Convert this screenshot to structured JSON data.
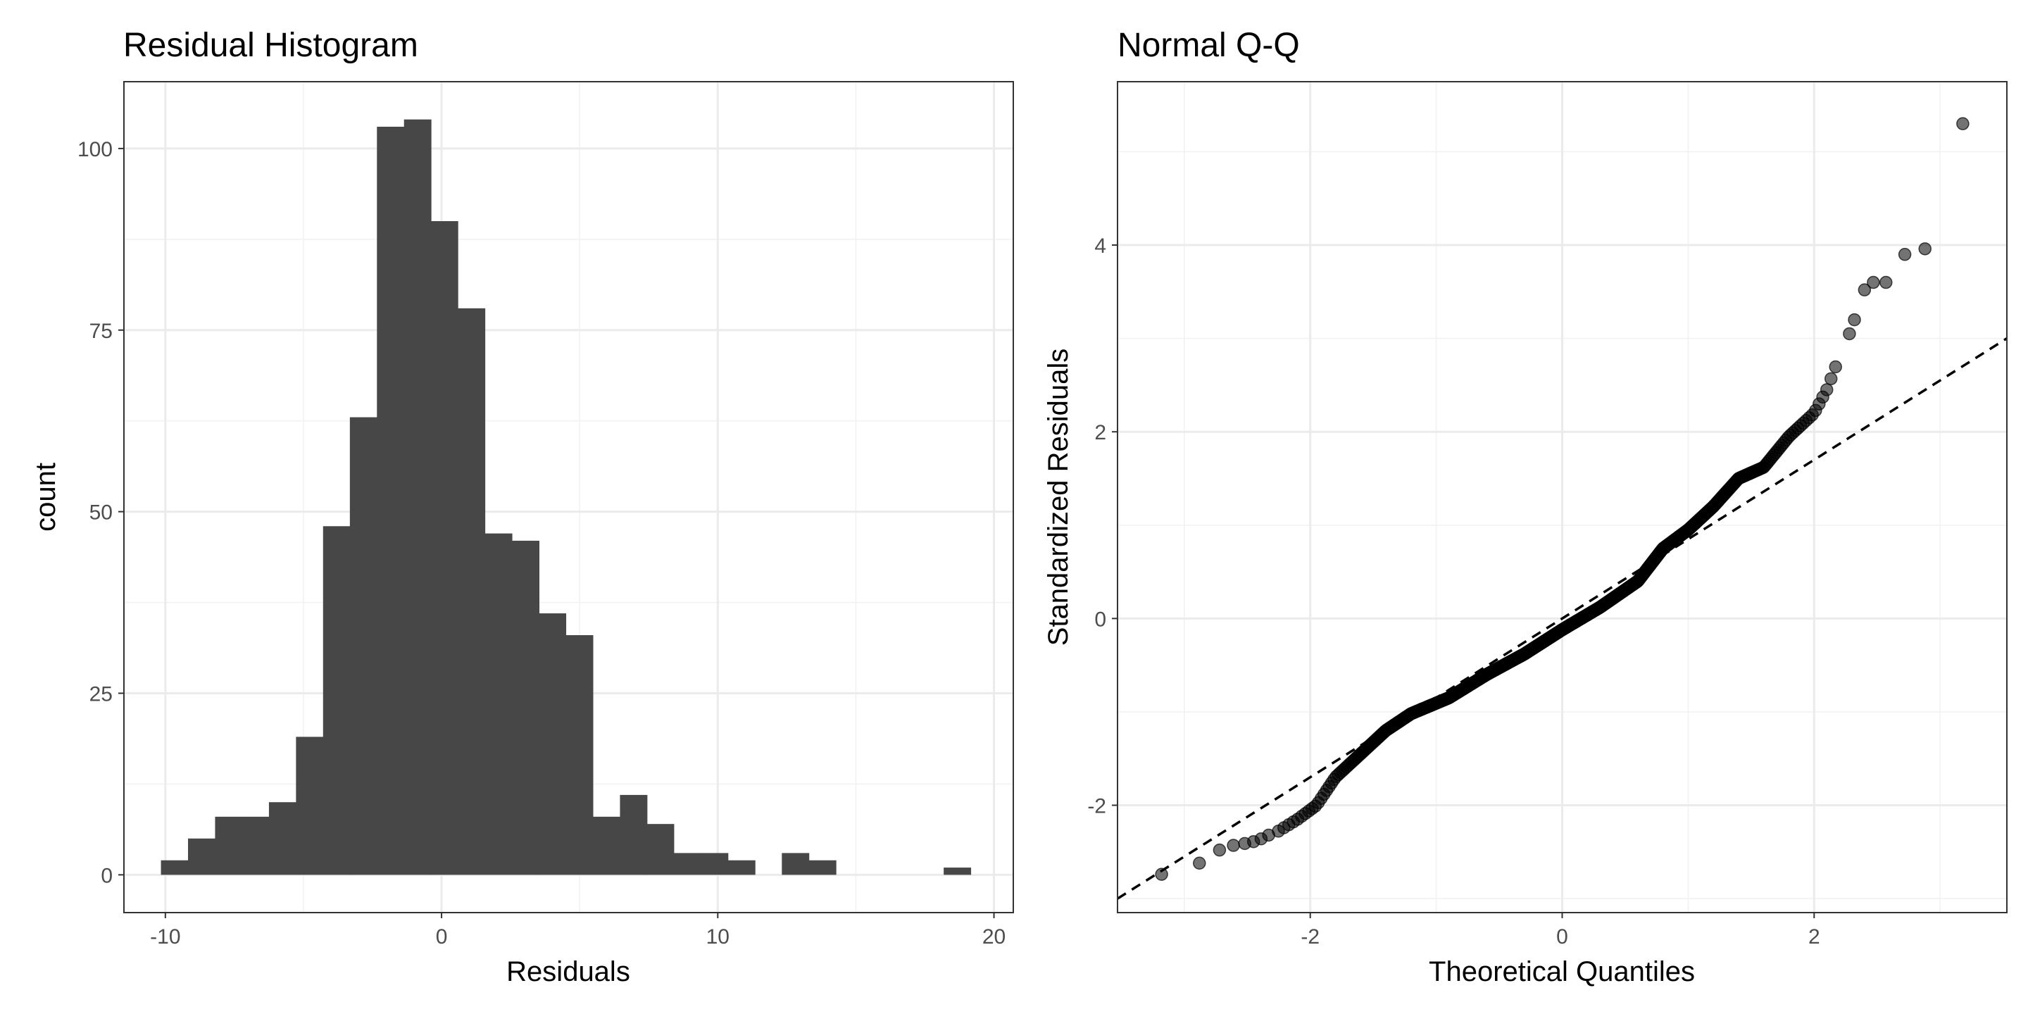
{
  "chart_data": [
    {
      "type": "bar",
      "title": "Residual Histogram",
      "xlabel": "Residuals",
      "ylabel": "count",
      "xlim": [
        -11.5,
        20.7
      ],
      "ylim": [
        -5.2,
        109.2
      ],
      "xticks": [
        -10,
        0,
        10,
        20
      ],
      "yticks": [
        0,
        25,
        50,
        75,
        100
      ],
      "grid": true,
      "colors": {
        "bar": "#474747"
      },
      "bin_width": 0.977,
      "bin_starts": [
        -10.16,
        -9.18,
        -8.2,
        -7.23,
        -6.25,
        -5.27,
        -4.29,
        -3.32,
        -2.34,
        -1.36,
        -0.39,
        0.59,
        1.57,
        2.55,
        3.52,
        4.5,
        5.48,
        6.46,
        7.43,
        8.41,
        9.39,
        10.37,
        11.34,
        12.32,
        13.3,
        14.27,
        15.25,
        16.23,
        17.21,
        18.18
      ],
      "values": [
        2,
        5,
        8,
        8,
        10,
        19,
        48,
        63,
        103,
        104,
        90,
        78,
        47,
        46,
        36,
        33,
        8,
        11,
        7,
        3,
        3,
        2,
        0,
        3,
        2,
        0,
        0,
        0,
        0,
        1
      ]
    },
    {
      "type": "scatter",
      "title": "Normal Q-Q",
      "xlabel": "Theoretical Quantiles",
      "ylabel": "Standardized Residuals",
      "xlim": [
        -3.53,
        3.53
      ],
      "ylim": [
        -3.15,
        5.75
      ],
      "xticks": [
        -2,
        0,
        2
      ],
      "yticks": [
        -2,
        0,
        2,
        4
      ],
      "grid": true,
      "n_points": 700,
      "reference_line": {
        "intercept": 0.0,
        "slope": 0.85
      },
      "outlier_points": [
        {
          "x": -3.18,
          "y": -2.74
        },
        {
          "x": -2.88,
          "y": -2.62
        },
        {
          "x": -2.72,
          "y": -2.48
        },
        {
          "x": -2.61,
          "y": -2.43
        },
        {
          "x": -2.52,
          "y": -2.41
        },
        {
          "x": -2.45,
          "y": -2.39
        },
        {
          "x": -2.39,
          "y": -2.36
        },
        {
          "x": -2.33,
          "y": -2.32
        },
        {
          "x": 2.28,
          "y": 3.05
        },
        {
          "x": 2.32,
          "y": 3.2
        },
        {
          "x": 2.4,
          "y": 3.52
        },
        {
          "x": 2.47,
          "y": 3.6
        },
        {
          "x": 2.57,
          "y": 3.6
        },
        {
          "x": 2.72,
          "y": 3.9
        },
        {
          "x": 2.88,
          "y": 3.96
        },
        {
          "x": 3.18,
          "y": 5.3
        }
      ],
      "curve_knots": [
        {
          "x": -2.28,
          "y": -2.3
        },
        {
          "x": -2.1,
          "y": -2.15
        },
        {
          "x": -1.95,
          "y": -2.0
        },
        {
          "x": -1.8,
          "y": -1.7
        },
        {
          "x": -1.6,
          "y": -1.45
        },
        {
          "x": -1.4,
          "y": -1.2
        },
        {
          "x": -1.2,
          "y": -1.02
        },
        {
          "x": -0.9,
          "y": -0.85
        },
        {
          "x": -0.6,
          "y": -0.6
        },
        {
          "x": -0.3,
          "y": -0.38
        },
        {
          "x": 0.0,
          "y": -0.12
        },
        {
          "x": 0.3,
          "y": 0.12
        },
        {
          "x": 0.6,
          "y": 0.4
        },
        {
          "x": 0.8,
          "y": 0.75
        },
        {
          "x": 1.0,
          "y": 0.95
        },
        {
          "x": 1.2,
          "y": 1.2
        },
        {
          "x": 1.4,
          "y": 1.5
        },
        {
          "x": 1.6,
          "y": 1.62
        },
        {
          "x": 1.8,
          "y": 1.95
        },
        {
          "x": 2.0,
          "y": 2.2
        },
        {
          "x": 2.1,
          "y": 2.45
        },
        {
          "x": 2.2,
          "y": 2.8
        }
      ]
    }
  ]
}
